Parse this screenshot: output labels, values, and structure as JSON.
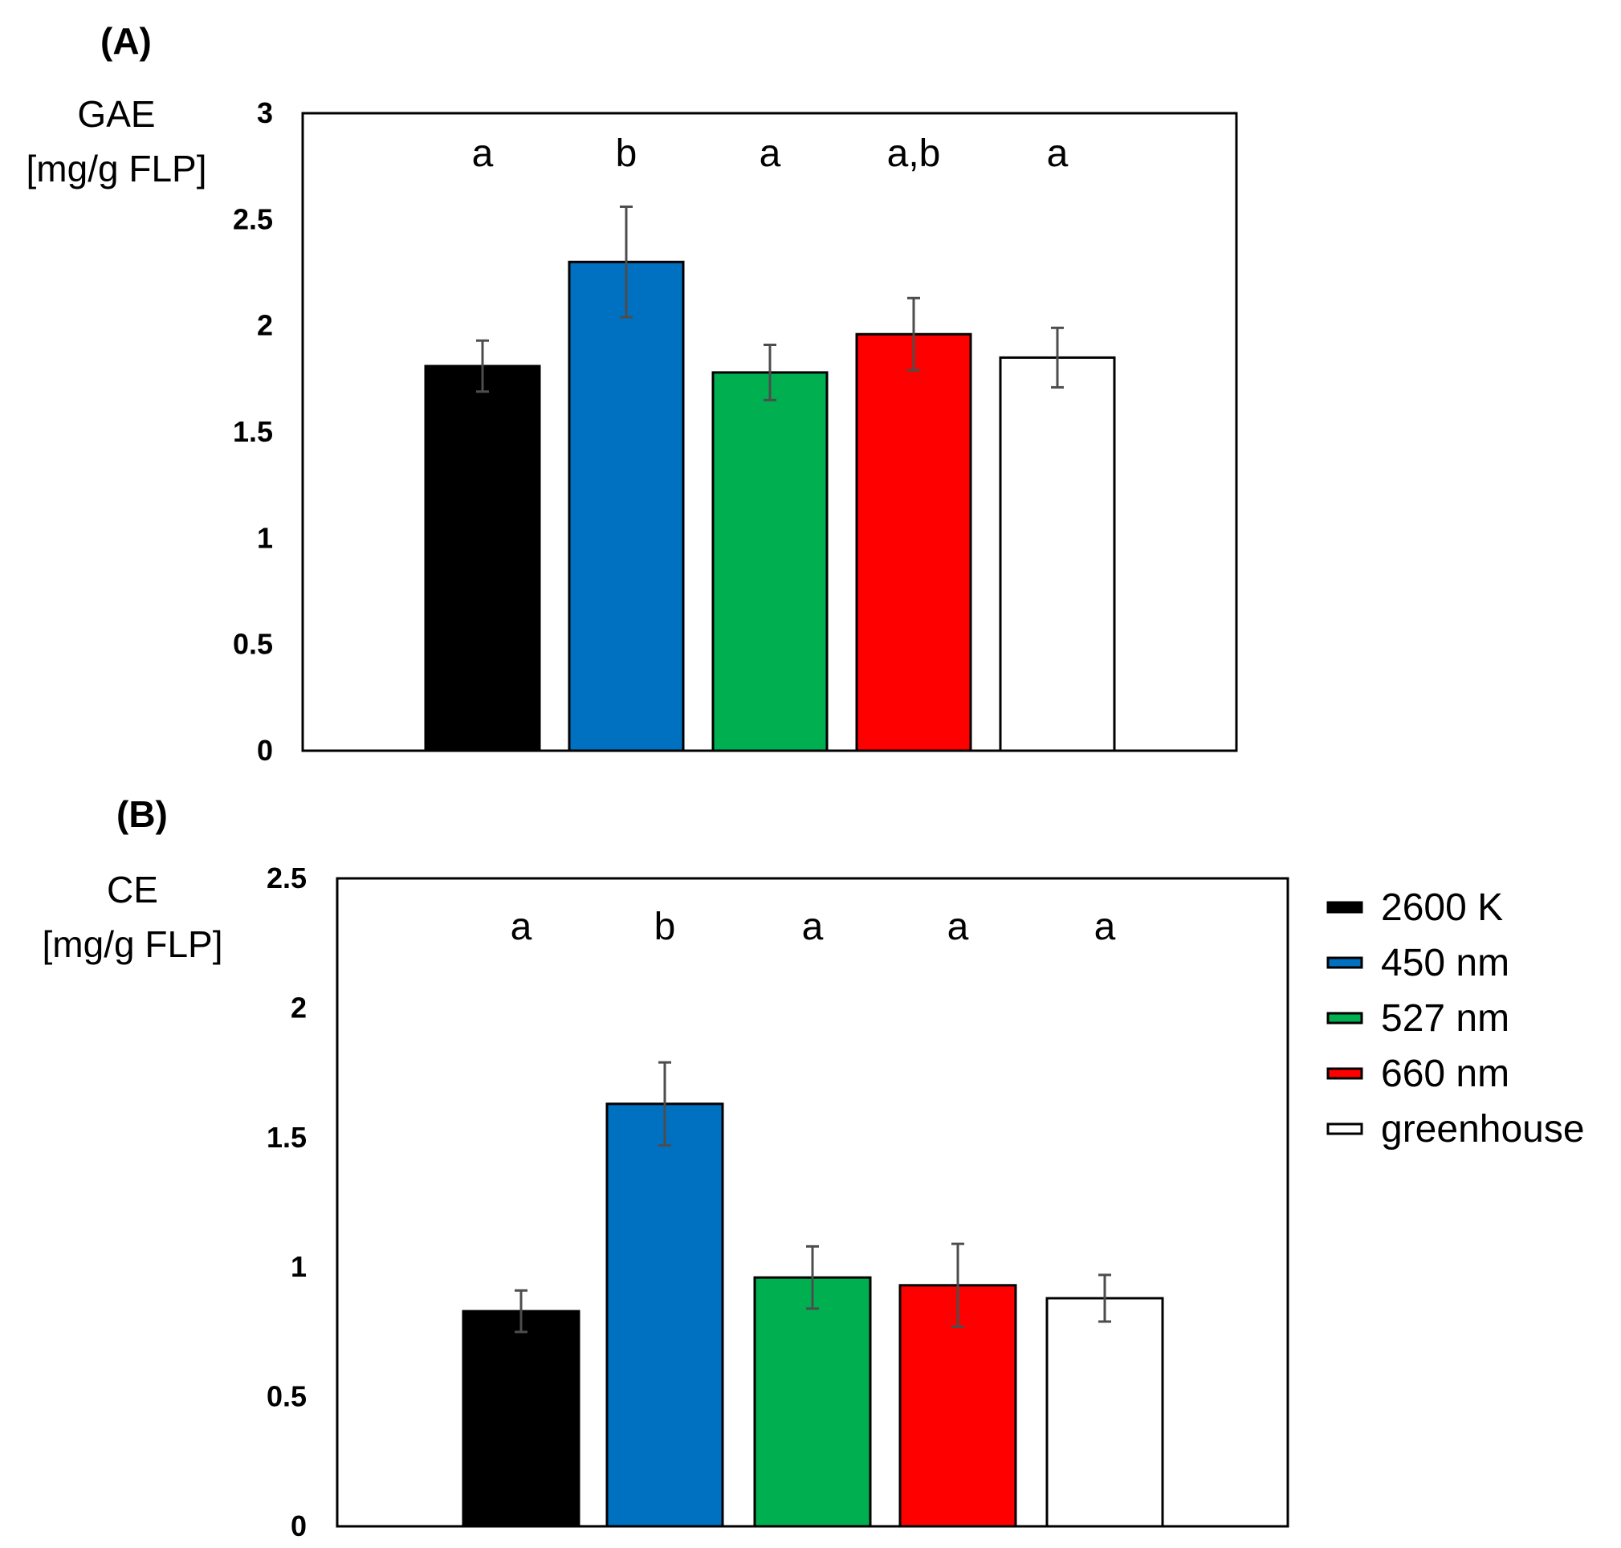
{
  "chart_data": [
    {
      "type": "bar",
      "panel": "(A)",
      "ylabel_line1": "GAE",
      "ylabel_line2": "[mg/g FLP]",
      "categories": [
        "2600 K",
        "450 nm",
        "527 nm",
        "660 nm",
        "greenhouse"
      ],
      "values": [
        1.81,
        2.3,
        1.78,
        1.96,
        1.85
      ],
      "errors": [
        0.12,
        0.26,
        0.13,
        0.17,
        0.14
      ],
      "significance": [
        "a",
        "b",
        "a",
        "a,b",
        "a"
      ],
      "ylim": [
        0,
        3
      ],
      "yticks": [
        "0",
        "0.5",
        "1",
        "1.5",
        "2",
        "2.5",
        "3"
      ],
      "yticks_values": [
        0,
        0.5,
        1,
        1.5,
        2,
        2.5,
        3
      ]
    },
    {
      "type": "bar",
      "panel": "(B)",
      "ylabel_line1": "CE",
      "ylabel_line2": "[mg/g FLP]",
      "categories": [
        "2600 K",
        "450 nm",
        "527 nm",
        "660 nm",
        "greenhouse"
      ],
      "values": [
        0.83,
        1.63,
        0.96,
        0.93,
        0.88
      ],
      "errors": [
        0.08,
        0.16,
        0.12,
        0.16,
        0.09
      ],
      "significance": [
        "a",
        "b",
        "a",
        "a",
        "a"
      ],
      "ylim": [
        0,
        2.5
      ],
      "yticks": [
        "0",
        "0.5",
        "1",
        "1.5",
        "2",
        "2.5"
      ],
      "yticks_values": [
        0,
        0.5,
        1,
        1.5,
        2,
        2.5
      ]
    }
  ],
  "legend": {
    "items": [
      {
        "label": "2600 K",
        "color": "#000000"
      },
      {
        "label": "450 nm",
        "color": "#0070C0"
      },
      {
        "label": "527 nm",
        "color": "#00B050"
      },
      {
        "label": "660 nm",
        "color": "#FF0000"
      },
      {
        "label": "greenhouse",
        "color": "#FFFFFF"
      }
    ]
  }
}
